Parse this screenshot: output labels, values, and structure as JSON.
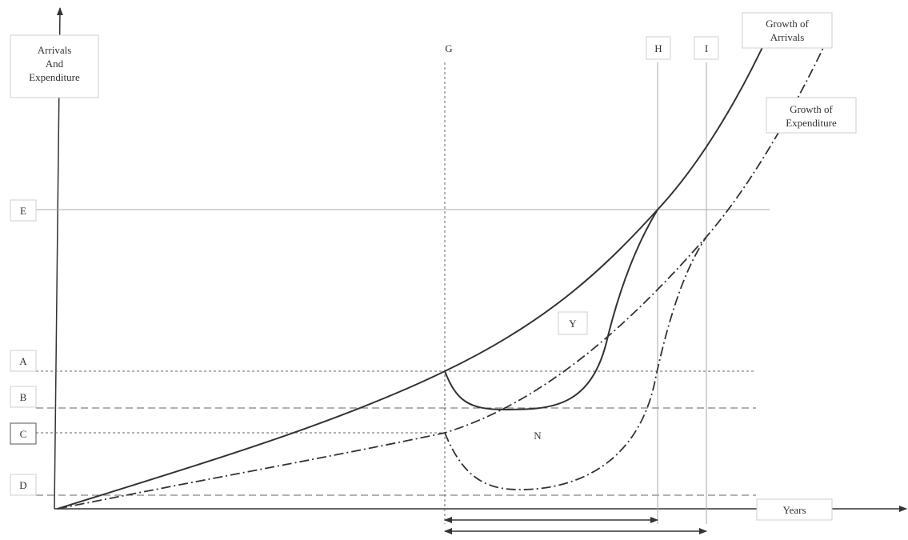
{
  "diagram": {
    "y_axis_label": [
      "Arrivals",
      "And",
      "Expenditure"
    ],
    "x_axis_label": "Years",
    "level_labels": {
      "E": "E",
      "A": "A",
      "B": "B",
      "C": "C",
      "D": "D"
    },
    "time_labels": {
      "G": "G",
      "H": "H",
      "I": "I"
    },
    "curve_labels": {
      "arrivals": [
        "Growth of",
        "Arrivals"
      ],
      "expenditure": [
        "Growth of",
        "Expenditure"
      ]
    },
    "region_labels": {
      "Y": "Y",
      "N": "N"
    },
    "colors": {
      "line": "#333333",
      "guide": "#888888",
      "box_border": "#cfcfcf"
    }
  }
}
